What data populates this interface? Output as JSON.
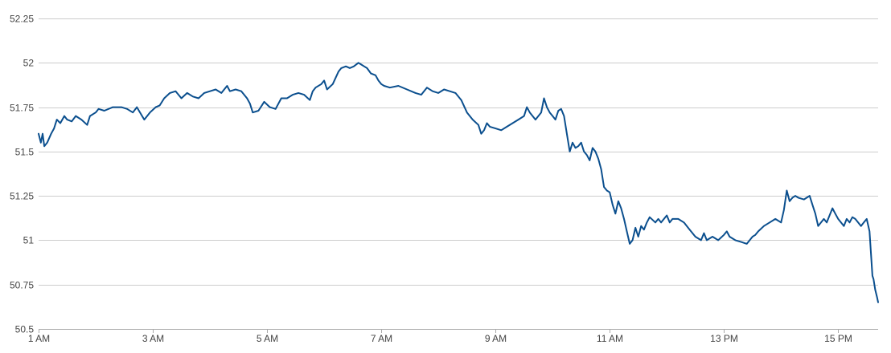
{
  "chart_data": {
    "type": "line",
    "title": "",
    "xlabel": "",
    "ylabel": "",
    "ylim": [
      50.5,
      52.25
    ],
    "xlim": [
      1,
      15.7
    ],
    "grid": true,
    "legend": "none",
    "yticks": [
      {
        "value": 50.5,
        "label": "50.5"
      },
      {
        "value": 50.75,
        "label": "50.75"
      },
      {
        "value": 51,
        "label": "51"
      },
      {
        "value": 51.25,
        "label": "51.25"
      },
      {
        "value": 51.5,
        "label": "51.5"
      },
      {
        "value": 51.75,
        "label": "51.75"
      },
      {
        "value": 52,
        "label": "52"
      },
      {
        "value": 52.25,
        "label": "52.25"
      }
    ],
    "xticks": [
      {
        "value": 1,
        "label": "1 AM"
      },
      {
        "value": 3,
        "label": "3 AM"
      },
      {
        "value": 5,
        "label": "5 AM"
      },
      {
        "value": 7,
        "label": "7 AM"
      },
      {
        "value": 9,
        "label": "9 AM"
      },
      {
        "value": 11,
        "label": "11 AM"
      },
      {
        "value": 13,
        "label": "13 PM"
      },
      {
        "value": 15,
        "label": "15 PM"
      }
    ],
    "series": [
      {
        "color": "#0b4f8e",
        "x": [
          1.0,
          1.04,
          1.07,
          1.1,
          1.15,
          1.22,
          1.27,
          1.32,
          1.38,
          1.45,
          1.5,
          1.58,
          1.65,
          1.75,
          1.85,
          1.9,
          2.0,
          2.05,
          2.15,
          2.3,
          2.45,
          2.55,
          2.65,
          2.72,
          2.85,
          2.95,
          3.05,
          3.12,
          3.2,
          3.3,
          3.4,
          3.5,
          3.6,
          3.7,
          3.8,
          3.9,
          4.0,
          4.1,
          4.2,
          4.3,
          4.35,
          4.45,
          4.55,
          4.65,
          4.7,
          4.75,
          4.85,
          4.95,
          5.05,
          5.15,
          5.25,
          5.35,
          5.45,
          5.55,
          5.65,
          5.75,
          5.8,
          5.85,
          5.95,
          6.0,
          6.05,
          6.15,
          6.25,
          6.3,
          6.38,
          6.45,
          6.52,
          6.6,
          6.65,
          6.7,
          6.75,
          6.82,
          6.9,
          6.95,
          7.0,
          7.05,
          7.15,
          7.3,
          7.45,
          7.6,
          7.7,
          7.8,
          7.9,
          8.0,
          8.1,
          8.2,
          8.3,
          8.4,
          8.5,
          8.6,
          8.7,
          8.75,
          8.8,
          8.85,
          8.9,
          9.0,
          9.1,
          9.2,
          9.3,
          9.4,
          9.5,
          9.55,
          9.6,
          9.7,
          9.8,
          9.85,
          9.9,
          9.95,
          10.0,
          10.05,
          10.1,
          10.15,
          10.2,
          10.25,
          10.3,
          10.35,
          10.4,
          10.45,
          10.5,
          10.55,
          10.6,
          10.65,
          10.7,
          10.75,
          10.8,
          10.85,
          10.9,
          10.95,
          11.0,
          11.05,
          11.1,
          11.15,
          11.2,
          11.25,
          11.3,
          11.35,
          11.4,
          11.45,
          11.5,
          11.55,
          11.6,
          11.65,
          11.7,
          11.8,
          11.85,
          11.9,
          12.0,
          12.05,
          12.1,
          12.2,
          12.3,
          12.4,
          12.5,
          12.6,
          12.65,
          12.7,
          12.8,
          12.9,
          13.0,
          13.05,
          13.1,
          13.2,
          13.3,
          13.4,
          13.5,
          13.55,
          13.6,
          13.7,
          13.8,
          13.9,
          14.0,
          14.05,
          14.1,
          14.15,
          14.2,
          14.25,
          14.3,
          14.4,
          14.5,
          14.55,
          14.6,
          14.65,
          14.7,
          14.75,
          14.8,
          14.85,
          14.9,
          14.95,
          15.0,
          15.05,
          15.1,
          15.15,
          15.2,
          15.25,
          15.3,
          15.35,
          15.4,
          15.45,
          15.5,
          15.55,
          15.6,
          15.62,
          15.65,
          15.68,
          15.7
        ],
        "y": [
          51.6,
          51.55,
          51.6,
          51.53,
          51.55,
          51.6,
          51.63,
          51.68,
          51.66,
          51.7,
          51.68,
          51.67,
          51.7,
          51.68,
          51.65,
          51.7,
          51.72,
          51.74,
          51.73,
          51.75,
          51.75,
          51.74,
          51.72,
          51.75,
          51.68,
          51.72,
          51.75,
          51.76,
          51.8,
          51.83,
          51.84,
          51.8,
          51.83,
          51.81,
          51.8,
          51.83,
          51.84,
          51.85,
          51.83,
          51.87,
          51.84,
          51.85,
          51.84,
          51.8,
          51.77,
          51.72,
          51.73,
          51.78,
          51.75,
          51.74,
          51.8,
          51.8,
          51.82,
          51.83,
          51.82,
          51.79,
          51.84,
          51.86,
          51.88,
          51.9,
          51.85,
          51.88,
          51.95,
          51.97,
          51.98,
          51.97,
          51.98,
          52.0,
          51.99,
          51.98,
          51.97,
          51.94,
          51.93,
          51.9,
          51.88,
          51.87,
          51.86,
          51.87,
          51.85,
          51.83,
          51.82,
          51.86,
          51.84,
          51.83,
          51.85,
          51.84,
          51.83,
          51.79,
          51.72,
          51.68,
          51.65,
          51.6,
          51.62,
          51.66,
          51.64,
          51.63,
          51.62,
          51.64,
          51.66,
          51.68,
          51.7,
          51.75,
          51.72,
          51.68,
          51.72,
          51.8,
          51.75,
          51.72,
          51.7,
          51.68,
          51.73,
          51.74,
          51.7,
          51.6,
          51.5,
          51.55,
          51.52,
          51.53,
          51.55,
          51.5,
          51.48,
          51.45,
          51.52,
          51.5,
          51.46,
          51.4,
          51.3,
          51.28,
          51.27,
          51.2,
          51.15,
          51.22,
          51.18,
          51.12,
          51.05,
          50.98,
          51.0,
          51.07,
          51.02,
          51.08,
          51.06,
          51.1,
          51.13,
          51.1,
          51.12,
          51.1,
          51.14,
          51.1,
          51.12,
          51.12,
          51.1,
          51.06,
          51.02,
          51.0,
          51.04,
          51.0,
          51.02,
          51.0,
          51.03,
          51.05,
          51.02,
          51.0,
          50.99,
          50.98,
          51.02,
          51.03,
          51.05,
          51.08,
          51.1,
          51.12,
          51.1,
          51.17,
          51.28,
          51.22,
          51.24,
          51.25,
          51.24,
          51.23,
          51.25,
          51.2,
          51.15,
          51.08,
          51.1,
          51.12,
          51.1,
          51.14,
          51.18,
          51.15,
          51.12,
          51.1,
          51.08,
          51.12,
          51.1,
          51.13,
          51.12,
          51.1,
          51.08,
          51.1,
          51.12,
          51.05,
          50.8,
          50.78,
          50.72,
          50.68,
          50.65
        ]
      }
    ]
  }
}
